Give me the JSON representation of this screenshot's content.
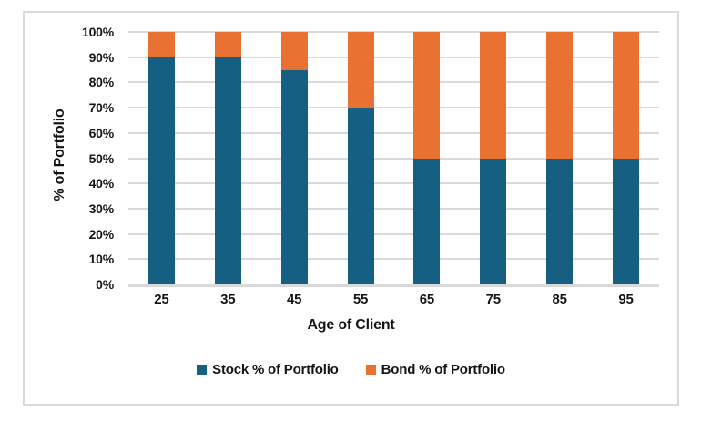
{
  "chart_data": {
    "type": "bar",
    "stacked": true,
    "categories": [
      "25",
      "35",
      "45",
      "55",
      "65",
      "75",
      "85",
      "95"
    ],
    "series": [
      {
        "name": "Stock % of Portfolio",
        "color": "#156082",
        "values": [
          90,
          90,
          85,
          70,
          50,
          50,
          50,
          50
        ]
      },
      {
        "name": "Bond % of Portfolio",
        "color": "#E97132",
        "values": [
          10,
          10,
          15,
          30,
          50,
          50,
          50,
          50
        ]
      }
    ],
    "xlabel": "Age of Client",
    "ylabel": "% of Portfolio",
    "ylim": [
      0,
      100
    ],
    "ytick_step": 10,
    "yticks": [
      "0%",
      "10%",
      "20%",
      "30%",
      "40%",
      "50%",
      "60%",
      "70%",
      "80%",
      "90%",
      "100%"
    ],
    "grid": "horizontal",
    "legend_position": "bottom"
  },
  "theme": {
    "background": "#FFFFFF",
    "frame_border": "#D9D9D9",
    "gridline": "#D9D9D9",
    "axis_line": "#D9D9D9",
    "text": "#141414"
  }
}
